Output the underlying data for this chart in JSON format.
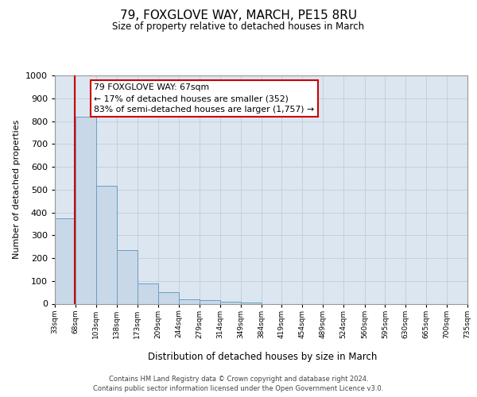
{
  "title": "79, FOXGLOVE WAY, MARCH, PE15 8RU",
  "subtitle": "Size of property relative to detached houses in March",
  "xlabel": "Distribution of detached houses by size in March",
  "ylabel": "Number of detached properties",
  "bar_edges": [
    33,
    68,
    103,
    138,
    173,
    209,
    244,
    279,
    314,
    349,
    384,
    419,
    454,
    489,
    524,
    560,
    595,
    630,
    665,
    700,
    735
  ],
  "bar_heights": [
    375,
    820,
    515,
    235,
    90,
    50,
    20,
    15,
    8,
    5,
    0,
    0,
    0,
    0,
    0,
    0,
    0,
    0,
    0,
    0
  ],
  "bar_color": "#c8d8e8",
  "bar_edge_color": "#6a9fc0",
  "property_line_x": 67,
  "property_line_color": "#cc0000",
  "annotation_text_line1": "79 FOXGLOVE WAY: 67sqm",
  "annotation_text_line2": "← 17% of detached houses are smaller (352)",
  "annotation_text_line3": "83% of semi-detached houses are larger (1,757) →",
  "annotation_box_color": "#cc0000",
  "ylim": [
    0,
    1000
  ],
  "yticks": [
    0,
    100,
    200,
    300,
    400,
    500,
    600,
    700,
    800,
    900,
    1000
  ],
  "grid_color": "#c5d0db",
  "plot_bg_color": "#dce6f0",
  "footer_line1": "Contains HM Land Registry data © Crown copyright and database right 2024.",
  "footer_line2": "Contains public sector information licensed under the Open Government Licence v3.0.",
  "tick_labels": [
    "33sqm",
    "68sqm",
    "103sqm",
    "138sqm",
    "173sqm",
    "209sqm",
    "244sqm",
    "279sqm",
    "314sqm",
    "349sqm",
    "384sqm",
    "419sqm",
    "454sqm",
    "489sqm",
    "524sqm",
    "560sqm",
    "595sqm",
    "630sqm",
    "665sqm",
    "700sqm",
    "735sqm"
  ]
}
